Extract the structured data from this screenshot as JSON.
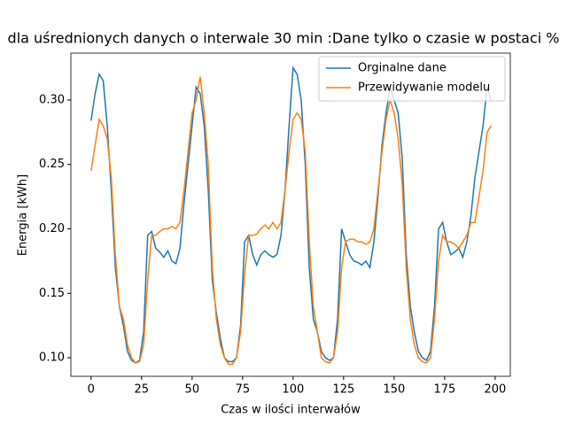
{
  "chart_data": {
    "type": "line",
    "title": "dla uśrednionych danych o interwale 30 min :Dane tylko o czasie w postaci %",
    "x_label": "Czas w ilości interwałów",
    "y_label": "Energia [kWh]",
    "xlim": [
      -10,
      207.5
    ],
    "ylim": [
      0.0856,
      0.3364
    ],
    "xticks": [
      0,
      25,
      50,
      75,
      100,
      125,
      150,
      175,
      200
    ],
    "yticks": [
      {
        "value": 0.1,
        "label": "0.10"
      },
      {
        "value": 0.15,
        "label": "0.15"
      },
      {
        "value": 0.2,
        "label": "0.20"
      },
      {
        "value": 0.25,
        "label": "0.25"
      },
      {
        "value": 0.3,
        "label": "0.30"
      }
    ],
    "grid": false,
    "legend": "upper right",
    "x": [
      0,
      2,
      4,
      6,
      8,
      10,
      12,
      14,
      16,
      18,
      20,
      22,
      24,
      26,
      28,
      30,
      32,
      34,
      36,
      38,
      40,
      42,
      44,
      46,
      48,
      50,
      52,
      54,
      56,
      58,
      60,
      62,
      64,
      66,
      68,
      70,
      72,
      74,
      76,
      78,
      80,
      82,
      84,
      86,
      88,
      90,
      92,
      94,
      96,
      98,
      100,
      102,
      104,
      106,
      108,
      110,
      112,
      114,
      116,
      118,
      120,
      122,
      124,
      126,
      128,
      130,
      132,
      134,
      136,
      138,
      140,
      142,
      144,
      146,
      148,
      150,
      152,
      154,
      156,
      158,
      160,
      162,
      164,
      166,
      168,
      170,
      172,
      174,
      176,
      178,
      180,
      182,
      184,
      186,
      188,
      190,
      192,
      194,
      196,
      198
    ],
    "series": [
      {
        "name": "Orginalne dane",
        "color": "#1f77b4",
        "values": [
          0.284,
          0.305,
          0.32,
          0.315,
          0.28,
          0.23,
          0.17,
          0.14,
          0.125,
          0.105,
          0.098,
          0.096,
          0.098,
          0.12,
          0.195,
          0.198,
          0.185,
          0.182,
          0.178,
          0.183,
          0.175,
          0.173,
          0.185,
          0.22,
          0.25,
          0.28,
          0.31,
          0.305,
          0.28,
          0.23,
          0.16,
          0.135,
          0.115,
          0.1,
          0.097,
          0.097,
          0.1,
          0.125,
          0.19,
          0.195,
          0.18,
          0.172,
          0.18,
          0.183,
          0.18,
          0.178,
          0.18,
          0.195,
          0.23,
          0.28,
          0.325,
          0.32,
          0.3,
          0.25,
          0.17,
          0.13,
          0.12,
          0.105,
          0.1,
          0.098,
          0.1,
          0.13,
          0.2,
          0.19,
          0.18,
          0.175,
          0.174,
          0.172,
          0.175,
          0.17,
          0.19,
          0.225,
          0.265,
          0.29,
          0.31,
          0.3,
          0.29,
          0.255,
          0.18,
          0.14,
          0.12,
          0.105,
          0.1,
          0.098,
          0.105,
          0.14,
          0.2,
          0.205,
          0.19,
          0.18,
          0.182,
          0.185,
          0.178,
          0.19,
          0.21,
          0.24,
          0.26,
          0.28,
          0.31,
          0.3
        ]
      },
      {
        "name": "Przewidywanie modelu",
        "color": "#ff7f0e",
        "values": [
          0.245,
          0.265,
          0.285,
          0.28,
          0.27,
          0.24,
          0.18,
          0.14,
          0.13,
          0.11,
          0.1,
          0.096,
          0.097,
          0.11,
          0.16,
          0.195,
          0.195,
          0.198,
          0.2,
          0.2,
          0.202,
          0.2,
          0.205,
          0.23,
          0.26,
          0.29,
          0.3,
          0.318,
          0.29,
          0.25,
          0.17,
          0.13,
          0.11,
          0.1,
          0.095,
          0.095,
          0.1,
          0.12,
          0.165,
          0.195,
          0.195,
          0.196,
          0.2,
          0.203,
          0.2,
          0.205,
          0.2,
          0.205,
          0.23,
          0.26,
          0.285,
          0.29,
          0.285,
          0.26,
          0.19,
          0.14,
          0.12,
          0.1,
          0.097,
          0.096,
          0.1,
          0.12,
          0.17,
          0.19,
          0.192,
          0.192,
          0.19,
          0.19,
          0.188,
          0.19,
          0.2,
          0.23,
          0.26,
          0.285,
          0.3,
          0.29,
          0.27,
          0.235,
          0.17,
          0.13,
          0.11,
          0.1,
          0.097,
          0.096,
          0.1,
          0.13,
          0.175,
          0.195,
          0.19,
          0.19,
          0.188,
          0.185,
          0.19,
          0.195,
          0.205,
          0.205,
          0.225,
          0.245,
          0.275,
          0.28
        ]
      }
    ]
  }
}
